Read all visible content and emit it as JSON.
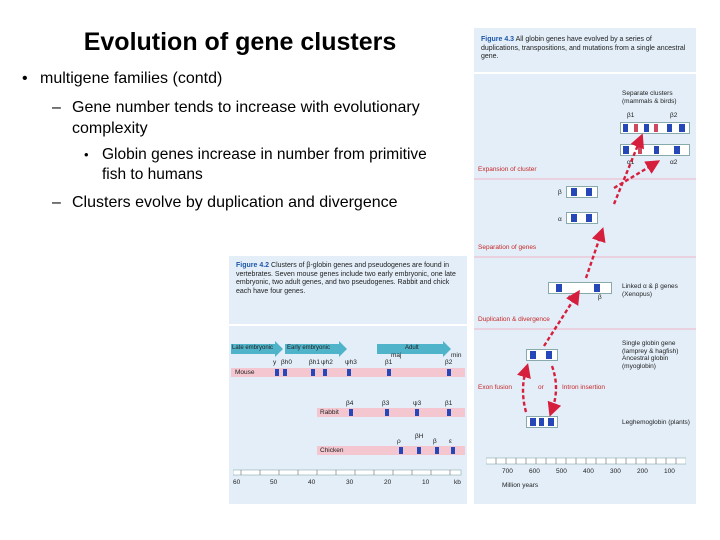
{
  "slide": {
    "title": "Evolution of gene clusters",
    "bullet_mark": "•",
    "bullet1": "multigene families (contd)",
    "dash": "–",
    "bullet1a": "Gene number tends to increase with evolutionary complexity",
    "bullet1a_sub": "Globin genes increase in number from primitive fish to humans",
    "bullet1b": "Clusters evolve by duplication and divergence"
  },
  "fig43": {
    "label": "Figure 4.3",
    "caption": "All globin genes have evolved by a series of duplications, transpositions, and mutations from a single ancestral gene.",
    "separate_clusters": "Separate clusters (mammals & birds)",
    "beta1": "β1",
    "beta2": "β2",
    "alpha1": "α1",
    "alpha2": "α2",
    "beta": "β",
    "alpha": "α",
    "expansion": "Expansion of cluster",
    "separation": "Separation of genes",
    "linked": "Linked α & β genes (Xenopus)",
    "dup_div": "Duplication & divergence",
    "single": "Single globin gene (lamprey & hagfish) Ancestral globin (myoglobin)",
    "exon_fusion": "Exon fusion",
    "or": "or",
    "intron_insertion": "Intron insertion",
    "leghemoglobin": "Leghemoglobin (plants)",
    "axis_ticks": [
      "700",
      "600",
      "500",
      "400",
      "300",
      "200",
      "100"
    ],
    "axis_label": "Million years"
  },
  "fig42": {
    "label": "Figure 4.2",
    "caption": "Clusters of β-globin genes and pseudogenes are found in vertebrates. Seven mouse genes include two early embryonic, one late embryonic, two adult genes, and two pseudogenes. Rabbit and chick each have four genes.",
    "arrow_late": "Late embryonic",
    "arrow_early": "Early embryonic",
    "arrow_adult": "Adult",
    "mouse": "Mouse",
    "rabbit": "Rabbit",
    "chicken": "Chicken",
    "mouse_genes": [
      "y",
      "βh0",
      "βh1",
      "ψh2",
      "ψh3",
      "β1",
      "β2"
    ],
    "maj": "maj",
    "min": "min",
    "rabbit_genes": [
      "β4",
      "β3",
      "ψ3",
      "β1"
    ],
    "chicken_genes": [
      "ρ",
      "βH",
      "β",
      "ε"
    ],
    "axis_ticks": [
      "60",
      "50",
      "40",
      "30",
      "20",
      "10",
      "kb"
    ]
  }
}
